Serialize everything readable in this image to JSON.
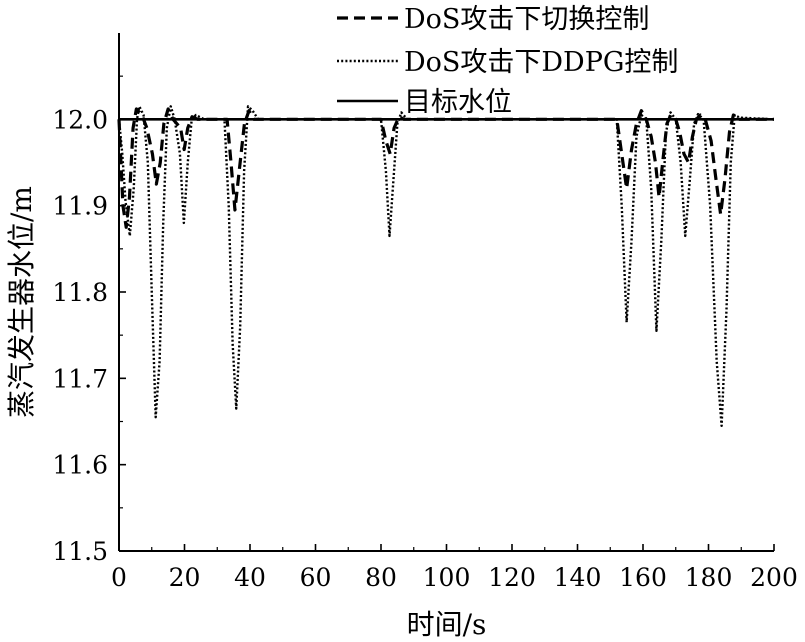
{
  "chart_data": {
    "type": "line",
    "title": "",
    "xlabel": "时间/s",
    "ylabel": "蒸汽发生器水位/m",
    "xlim": [
      0,
      200
    ],
    "ylim": [
      11.5,
      12.1
    ],
    "xticks": [
      "0",
      "20",
      "40",
      "60",
      "80",
      "100",
      "120",
      "140",
      "160",
      "180",
      "200"
    ],
    "yticks": [
      "11.5",
      "11.6",
      "11.7",
      "11.8",
      "11.9",
      "12.0"
    ],
    "grid": false,
    "legend_position": "top-right",
    "series": [
      {
        "name": "DoS攻击下切换控制",
        "style": "dashed",
        "color": "#000000",
        "points": [
          [
            0,
            12.0
          ],
          [
            1.2,
            11.9
          ],
          [
            2.2,
            11.875
          ],
          [
            3.2,
            11.91
          ],
          [
            4.3,
            11.99
          ],
          [
            5.3,
            12.012
          ],
          [
            7,
            12.005
          ],
          [
            8.5,
            11.99
          ],
          [
            10.2,
            11.96
          ],
          [
            11.4,
            11.925
          ],
          [
            12.6,
            11.95
          ],
          [
            13.7,
            11.995
          ],
          [
            15,
            12.012
          ],
          [
            16.5,
            12.0
          ],
          [
            18.8,
            11.99
          ],
          [
            19.9,
            11.965
          ],
          [
            21,
            11.99
          ],
          [
            22.3,
            12.003
          ],
          [
            24,
            12.0
          ],
          [
            27,
            12.0
          ],
          [
            33,
            12.0
          ],
          [
            34.2,
            11.95
          ],
          [
            35.4,
            11.895
          ],
          [
            36.7,
            11.94
          ],
          [
            38.3,
            11.995
          ],
          [
            39.7,
            12.01
          ],
          [
            41.2,
            12.0
          ],
          [
            80,
            12.0
          ],
          [
            81.5,
            11.975
          ],
          [
            82.8,
            11.96
          ],
          [
            84,
            11.99
          ],
          [
            85.5,
            12.003
          ],
          [
            87,
            12.0
          ],
          [
            152,
            12.0
          ],
          [
            153.5,
            11.96
          ],
          [
            155,
            11.92
          ],
          [
            156.5,
            11.965
          ],
          [
            158,
            11.995
          ],
          [
            159.5,
            12.01
          ],
          [
            161,
            12.0
          ],
          [
            162.5,
            11.98
          ],
          [
            163.8,
            11.95
          ],
          [
            164.9,
            11.91
          ],
          [
            166,
            11.95
          ],
          [
            167.3,
            11.995
          ],
          [
            168.5,
            12.005
          ],
          [
            170,
            12.0
          ],
          [
            171.2,
            11.985
          ],
          [
            172.5,
            11.96
          ],
          [
            173.9,
            11.95
          ],
          [
            175.1,
            11.98
          ],
          [
            176.3,
            12.0
          ],
          [
            177.5,
            12.005
          ],
          [
            179,
            12.0
          ],
          [
            180.8,
            11.975
          ],
          [
            182.3,
            11.93
          ],
          [
            183.7,
            11.89
          ],
          [
            185,
            11.93
          ],
          [
            186.4,
            11.985
          ],
          [
            187.6,
            12.005
          ],
          [
            189,
            12.0
          ],
          [
            200,
            12.0
          ]
        ]
      },
      {
        "name": "DoS攻击下DDPG控制",
        "style": "dotted",
        "color": "#000000",
        "points": [
          [
            0,
            12.0
          ],
          [
            1,
            11.96
          ],
          [
            2,
            11.905
          ],
          [
            3.3,
            11.865
          ],
          [
            4.5,
            11.92
          ],
          [
            5.5,
            12.0
          ],
          [
            6.2,
            12.015
          ],
          [
            7.5,
            12.005
          ],
          [
            8.8,
            11.95
          ],
          [
            10,
            11.8
          ],
          [
            11.2,
            11.655
          ],
          [
            12.4,
            11.72
          ],
          [
            13.5,
            11.88
          ],
          [
            14.6,
            11.99
          ],
          [
            15.8,
            12.015
          ],
          [
            17,
            12.0
          ],
          [
            18.6,
            11.96
          ],
          [
            19.8,
            11.88
          ],
          [
            21,
            11.95
          ],
          [
            22.2,
            12.0
          ],
          [
            23.5,
            12.005
          ],
          [
            26,
            12.0
          ],
          [
            32.2,
            12.0
          ],
          [
            33.5,
            11.9
          ],
          [
            34.7,
            11.74
          ],
          [
            35.8,
            11.665
          ],
          [
            37,
            11.76
          ],
          [
            38.2,
            11.94
          ],
          [
            39.4,
            12.015
          ],
          [
            40.8,
            12.01
          ],
          [
            42.5,
            12.0
          ],
          [
            80,
            12.0
          ],
          [
            81.5,
            11.94
          ],
          [
            82.6,
            11.865
          ],
          [
            83.8,
            11.93
          ],
          [
            85,
            11.995
          ],
          [
            86.2,
            12.008
          ],
          [
            88,
            12.0
          ],
          [
            152,
            12.0
          ],
          [
            153.5,
            11.9
          ],
          [
            155,
            11.765
          ],
          [
            156.5,
            11.86
          ],
          [
            158,
            11.98
          ],
          [
            159.5,
            12.005
          ],
          [
            161,
            12.0
          ],
          [
            162.5,
            11.92
          ],
          [
            164.1,
            11.755
          ],
          [
            165.6,
            11.86
          ],
          [
            167,
            11.985
          ],
          [
            168.4,
            12.008
          ],
          [
            170,
            12.0
          ],
          [
            171.5,
            11.95
          ],
          [
            172.9,
            11.865
          ],
          [
            174.3,
            11.93
          ],
          [
            175.6,
            11.995
          ],
          [
            176.8,
            12.006
          ],
          [
            178.5,
            12.0
          ],
          [
            180.5,
            11.9
          ],
          [
            182.5,
            11.72
          ],
          [
            184,
            11.645
          ],
          [
            185.5,
            11.78
          ],
          [
            186.8,
            11.95
          ],
          [
            188,
            12.005
          ],
          [
            189.5,
            12.002
          ],
          [
            200,
            12.0
          ]
        ]
      },
      {
        "name": "目标水位",
        "style": "solid",
        "color": "#000000",
        "points": [
          [
            0,
            12.0
          ],
          [
            200,
            12.0
          ]
        ]
      }
    ]
  }
}
